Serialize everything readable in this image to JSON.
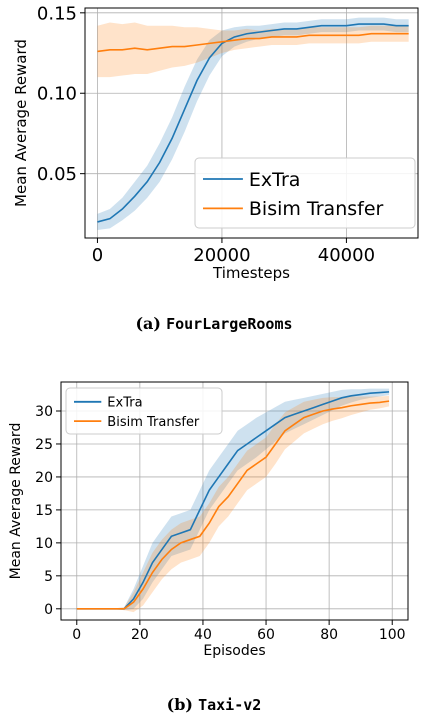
{
  "chart_data": [
    {
      "type": "line",
      "caption_label": "(a)",
      "caption_name": "FourLargeRooms",
      "xlabel": "Timesteps",
      "ylabel": "Mean Average Reward",
      "xlim": [
        -2000,
        51500
      ],
      "ylim": [
        0.01,
        0.153
      ],
      "xticks": [
        0,
        20000,
        40000
      ],
      "yticks": [
        0.05,
        0.1,
        0.15
      ],
      "ytick_labels": [
        "0.05",
        "0.10",
        "0.15"
      ],
      "grid": true,
      "legend_position": "lower-right",
      "series": [
        {
          "name": "ExTra",
          "color": "#1f77b4",
          "x": [
            0,
            2000,
            4000,
            6000,
            8000,
            10000,
            12000,
            14000,
            16000,
            18000,
            20000,
            22000,
            24000,
            26000,
            28000,
            30000,
            32000,
            34000,
            36000,
            38000,
            40000,
            42000,
            44000,
            46000,
            48000,
            50000
          ],
          "y": [
            0.02,
            0.022,
            0.028,
            0.036,
            0.045,
            0.057,
            0.072,
            0.09,
            0.108,
            0.122,
            0.131,
            0.135,
            0.137,
            0.138,
            0.139,
            0.14,
            0.14,
            0.141,
            0.142,
            0.142,
            0.142,
            0.143,
            0.143,
            0.143,
            0.142,
            0.142
          ],
          "band": [
            0.005,
            0.006,
            0.007,
            0.009,
            0.01,
            0.012,
            0.013,
            0.014,
            0.013,
            0.011,
            0.008,
            0.006,
            0.005,
            0.004,
            0.004,
            0.004,
            0.004,
            0.004,
            0.004,
            0.004,
            0.004,
            0.004,
            0.004,
            0.004,
            0.004,
            0.004
          ]
        },
        {
          "name": "Bisim Transfer",
          "color": "#ff7f0e",
          "x": [
            0,
            2000,
            4000,
            6000,
            8000,
            10000,
            12000,
            14000,
            16000,
            18000,
            20000,
            22000,
            24000,
            26000,
            28000,
            30000,
            32000,
            34000,
            36000,
            38000,
            40000,
            42000,
            44000,
            46000,
            48000,
            50000
          ],
          "y": [
            0.126,
            0.127,
            0.127,
            0.128,
            0.127,
            0.128,
            0.129,
            0.129,
            0.13,
            0.131,
            0.132,
            0.133,
            0.134,
            0.134,
            0.135,
            0.135,
            0.135,
            0.136,
            0.136,
            0.136,
            0.136,
            0.136,
            0.137,
            0.137,
            0.137,
            0.137
          ],
          "band": [
            0.016,
            0.017,
            0.016,
            0.016,
            0.015,
            0.014,
            0.013,
            0.012,
            0.011,
            0.009,
            0.007,
            0.006,
            0.006,
            0.005,
            0.005,
            0.005,
            0.005,
            0.005,
            0.005,
            0.005,
            0.005,
            0.005,
            0.005,
            0.005,
            0.005,
            0.005
          ]
        }
      ]
    },
    {
      "type": "line",
      "caption_label": "(b)",
      "caption_name": "Taxi-v2",
      "xlabel": "Episodes",
      "ylabel": "Mean Average Reward",
      "xlim": [
        -5,
        105
      ],
      "ylim": [
        -1.7,
        34.4
      ],
      "xticks": [
        0,
        20,
        40,
        60,
        80,
        100
      ],
      "yticks": [
        0,
        5,
        10,
        15,
        20,
        25,
        30
      ],
      "ytick_labels": [
        "0",
        "5",
        "10",
        "15",
        "20",
        "25",
        "30"
      ],
      "grid": true,
      "legend_position": "upper-left",
      "series": [
        {
          "name": "ExTra",
          "color": "#1f77b4",
          "x": [
            0,
            10,
            15,
            18,
            21,
            24,
            27,
            30,
            33,
            36,
            39,
            42,
            45,
            48,
            51,
            54,
            57,
            60,
            63,
            66,
            69,
            72,
            75,
            78,
            81,
            84,
            87,
            90,
            93,
            96,
            99
          ],
          "y": [
            0,
            0,
            0,
            1.5,
            4,
            7,
            9,
            11,
            11.5,
            12,
            15,
            18,
            20,
            22,
            24,
            25,
            26,
            27,
            28,
            29,
            29.5,
            30,
            30.5,
            31,
            31.5,
            32,
            32.3,
            32.5,
            32.7,
            32.8,
            32.9
          ],
          "band": [
            0,
            0,
            0.2,
            1.5,
            2.5,
            3.0,
            3.0,
            3.0,
            3.0,
            3.0,
            3.0,
            3.0,
            3.0,
            3.0,
            3.0,
            3.0,
            3.0,
            2.8,
            2.6,
            2.4,
            2.2,
            2.0,
            1.8,
            1.6,
            1.4,
            1.2,
            1.0,
            0.8,
            0.7,
            0.6,
            0.5
          ]
        },
        {
          "name": "Bisim Transfer",
          "color": "#ff7f0e",
          "x": [
            0,
            10,
            15,
            18,
            21,
            24,
            27,
            30,
            33,
            36,
            39,
            42,
            45,
            48,
            51,
            54,
            57,
            60,
            63,
            66,
            69,
            72,
            75,
            78,
            81,
            84,
            87,
            90,
            93,
            96,
            99
          ],
          "y": [
            0,
            0,
            0,
            1,
            3,
            5.5,
            7.5,
            9,
            10,
            10.5,
            11,
            13,
            15.5,
            17,
            19,
            21,
            22,
            23,
            25,
            27,
            28,
            29,
            29.5,
            30,
            30.3,
            30.5,
            30.8,
            31,
            31.2,
            31.3,
            31.5
          ],
          "band": [
            0,
            0,
            0.2,
            1.5,
            2.5,
            3.0,
            3.0,
            3.0,
            3.0,
            3.0,
            3.0,
            3.0,
            3.0,
            3.0,
            3.0,
            3.0,
            3.0,
            3.0,
            3.0,
            2.8,
            2.6,
            2.4,
            2.2,
            2.0,
            1.8,
            1.6,
            1.4,
            1.2,
            1.0,
            0.9,
            0.8
          ]
        }
      ]
    }
  ]
}
